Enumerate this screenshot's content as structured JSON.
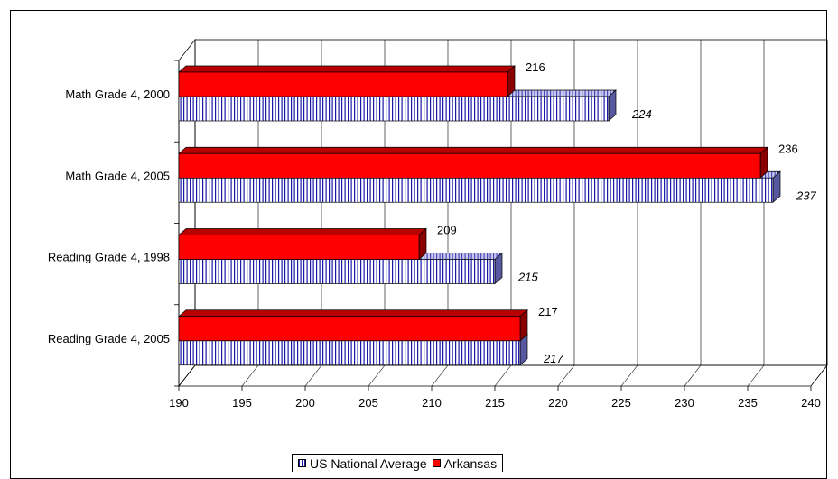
{
  "chart_data": {
    "type": "bar",
    "orientation": "horizontal",
    "categories": [
      "Math Grade 4, 2000",
      "Math Grade 4, 2005",
      "Reading Grade 4, 1998",
      "Reading Grade 4, 2005"
    ],
    "series": [
      {
        "name": "Arkansas",
        "values": [
          216,
          236,
          209,
          217
        ],
        "color": "#ff0000"
      },
      {
        "name": "US National Average",
        "values": [
          224,
          237,
          215,
          217
        ],
        "color": "#1a1aa8",
        "pattern": "vertical-stripes"
      }
    ],
    "value_labels": {
      "Arkansas": [
        "216",
        "236",
        "209",
        "217"
      ],
      "US National Average": [
        "224",
        "237",
        "215",
        "217"
      ]
    },
    "xlim": [
      190,
      240
    ],
    "xticks": [
      "190",
      "195",
      "200",
      "205",
      "210",
      "215",
      "220",
      "225",
      "230",
      "235",
      "240"
    ],
    "grid": true,
    "style": "3d",
    "legend_position": "bottom"
  },
  "legend": [
    {
      "key": "us",
      "label": "US National Average"
    },
    {
      "key": "ark",
      "label": "Arkansas"
    }
  ]
}
